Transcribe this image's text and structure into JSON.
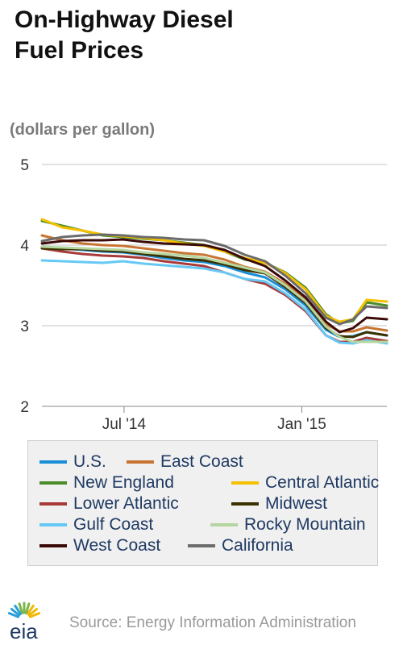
{
  "title_lines": [
    "On-Highway Diesel",
    "Fuel Prices"
  ],
  "source": "Source: Energy Information Administration",
  "logo": {
    "text": "eia",
    "icon": "eia-sunburst-logo",
    "colors": [
      "#f2b705",
      "#7ab648",
      "#2a9fd6"
    ]
  },
  "chart_data": {
    "type": "line",
    "ylabel": "(dollars per gallon)",
    "xlabel": "",
    "ylim": [
      2,
      5
    ],
    "yticks": [
      2,
      3,
      4,
      5
    ],
    "xlim": [
      "2014-04-07",
      "2015-03-30"
    ],
    "xticks": [
      {
        "date": "2014-07-01",
        "label": "Jul '14"
      },
      {
        "date": "2015-01-01",
        "label": "Jan '15"
      }
    ],
    "grid": true,
    "legend_position": "bottom",
    "x": [
      "2014-04-07",
      "2014-04-28",
      "2014-05-19",
      "2014-06-09",
      "2014-06-30",
      "2014-07-21",
      "2014-08-11",
      "2014-09-01",
      "2014-09-22",
      "2014-10-13",
      "2014-11-03",
      "2014-11-24",
      "2014-12-15",
      "2015-01-05",
      "2015-01-26",
      "2015-02-09",
      "2015-02-23",
      "2015-03-09",
      "2015-03-30"
    ],
    "series": [
      {
        "name": "U.S.",
        "color": "#1a8fd8",
        "values": [
          3.98,
          3.96,
          3.94,
          3.92,
          3.91,
          3.88,
          3.84,
          3.81,
          3.79,
          3.74,
          3.66,
          3.6,
          3.45,
          3.25,
          2.95,
          2.86,
          2.87,
          2.92,
          2.88
        ]
      },
      {
        "name": "East Coast",
        "color": "#c87533",
        "values": [
          4.12,
          4.06,
          4.02,
          4.0,
          3.99,
          3.96,
          3.93,
          3.9,
          3.88,
          3.82,
          3.73,
          3.67,
          3.52,
          3.32,
          3.02,
          2.93,
          2.93,
          2.98,
          2.94
        ]
      },
      {
        "name": "New England",
        "color": "#4a8c2a",
        "values": [
          4.3,
          4.24,
          4.18,
          4.12,
          4.1,
          4.08,
          4.06,
          4.03,
          4.0,
          3.92,
          3.82,
          3.78,
          3.66,
          3.47,
          3.14,
          3.03,
          3.06,
          3.29,
          3.25
        ]
      },
      {
        "name": "Central Atlantic",
        "color": "#f5c000",
        "values": [
          4.32,
          4.22,
          4.18,
          4.13,
          4.11,
          4.09,
          4.06,
          4.02,
          3.99,
          3.92,
          3.84,
          3.78,
          3.65,
          3.45,
          3.12,
          3.05,
          3.08,
          3.32,
          3.3
        ]
      },
      {
        "name": "Lower Atlantic",
        "color": "#a83a3a",
        "values": [
          3.96,
          3.92,
          3.89,
          3.87,
          3.86,
          3.84,
          3.8,
          3.77,
          3.74,
          3.66,
          3.58,
          3.52,
          3.38,
          3.18,
          2.88,
          2.8,
          2.8,
          2.85,
          2.81
        ]
      },
      {
        "name": "Midwest",
        "color": "#3b3000",
        "values": [
          3.96,
          3.95,
          3.95,
          3.93,
          3.92,
          3.89,
          3.86,
          3.83,
          3.81,
          3.76,
          3.69,
          3.65,
          3.48,
          3.28,
          2.97,
          2.87,
          2.86,
          2.92,
          2.88
        ]
      },
      {
        "name": "Gulf Coast",
        "color": "#66c8f5",
        "values": [
          3.81,
          3.8,
          3.79,
          3.78,
          3.8,
          3.77,
          3.75,
          3.73,
          3.71,
          3.66,
          3.58,
          3.55,
          3.4,
          3.2,
          2.88,
          2.79,
          2.78,
          2.82,
          2.78
        ]
      },
      {
        "name": "Rocky Mountain",
        "color": "#b5d6a0",
        "values": [
          3.98,
          3.97,
          3.96,
          3.95,
          3.94,
          3.91,
          3.89,
          3.87,
          3.84,
          3.78,
          3.72,
          3.66,
          3.5,
          3.3,
          2.99,
          2.86,
          2.8,
          2.8,
          2.8
        ]
      },
      {
        "name": "West Coast",
        "color": "#3d0a0a",
        "values": [
          4.02,
          4.05,
          4.06,
          4.06,
          4.07,
          4.04,
          4.02,
          4.01,
          4.0,
          3.94,
          3.83,
          3.74,
          3.56,
          3.35,
          3.05,
          2.92,
          2.97,
          3.1,
          3.08
        ]
      },
      {
        "name": "California",
        "color": "#6b6b6b",
        "values": [
          4.05,
          4.1,
          4.12,
          4.13,
          4.12,
          4.1,
          4.09,
          4.07,
          4.06,
          3.99,
          3.88,
          3.8,
          3.62,
          3.4,
          3.1,
          3.02,
          3.08,
          3.24,
          3.22
        ]
      }
    ]
  }
}
